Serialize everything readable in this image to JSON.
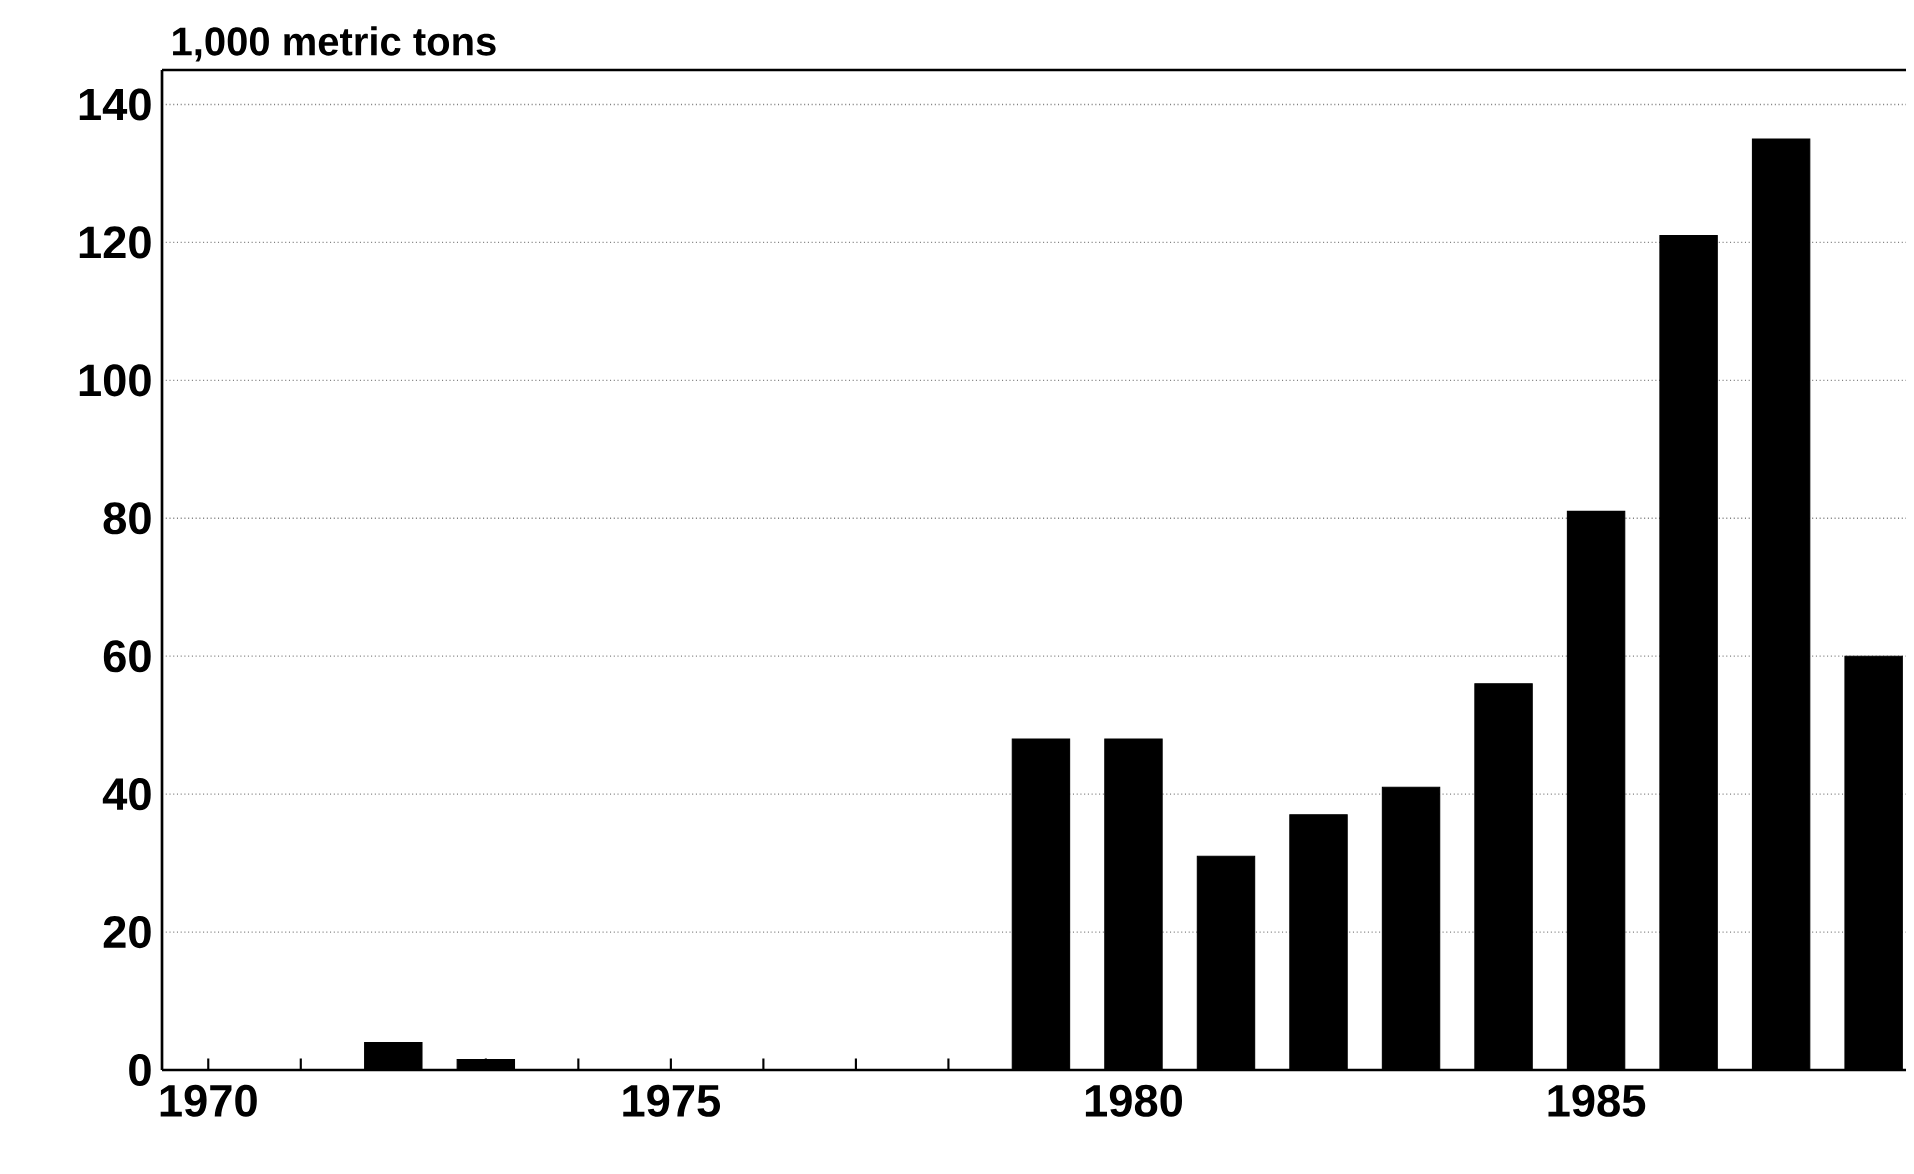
{
  "chart_data": {
    "type": "bar",
    "ylabel": "1,000 metric tons",
    "x": [
      1972,
      1973,
      1979,
      1980,
      1981,
      1982,
      1983,
      1984,
      1985,
      1986,
      1987,
      1988
    ],
    "values": [
      4,
      1.5,
      48,
      48,
      31,
      37,
      41,
      56,
      81,
      121,
      135,
      60
    ],
    "color": "#000000",
    "xlim": [
      1969.5,
      1988.35
    ],
    "xticks": [
      1970,
      {
        "value": 1971,
        "label": null
      },
      {
        "value": 1972,
        "label": null
      },
      {
        "value": 1973,
        "label": null
      },
      {
        "value": 1974,
        "label": null
      },
      1975,
      {
        "value": 1976,
        "label": null
      },
      {
        "value": 1977,
        "label": null
      },
      {
        "value": 1978,
        "label": null
      },
      {
        "value": 1979,
        "label": null
      },
      1980,
      {
        "value": 1981,
        "label": null
      },
      {
        "value": 1982,
        "label": null
      },
      {
        "value": 1983,
        "label": null
      },
      {
        "value": 1984,
        "label": null
      },
      1985,
      {
        "value": 1986,
        "label": null
      },
      {
        "value": 1987,
        "label": null
      },
      {
        "value": 1988,
        "label": null
      }
    ],
    "ylim": [
      0,
      145
    ],
    "yticks": [
      0,
      20,
      40,
      60,
      80,
      100,
      120,
      140
    ],
    "grid": "y"
  }
}
